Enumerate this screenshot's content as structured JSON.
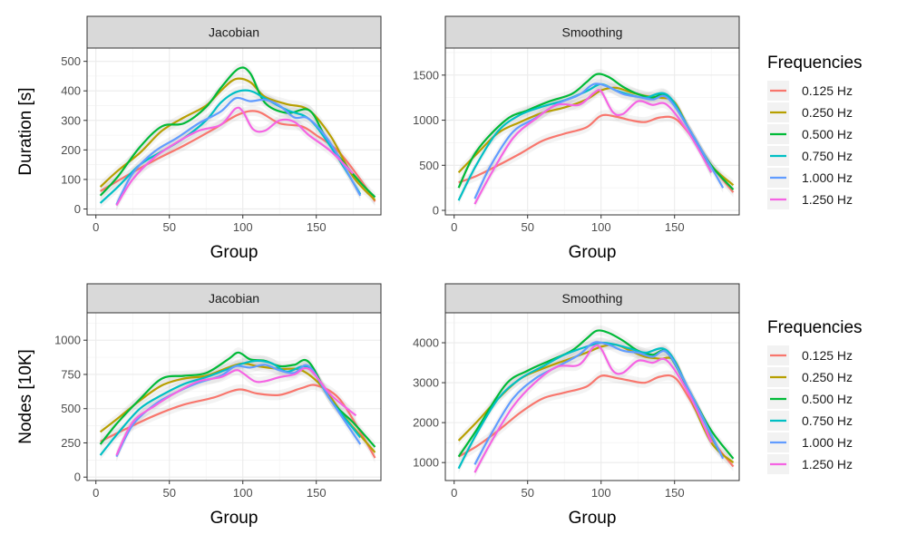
{
  "legend": {
    "title": "Frequencies",
    "items": [
      {
        "label": "0.125 Hz",
        "color": "#F8766D"
      },
      {
        "label": "0.250 Hz",
        "color": "#B79F00"
      },
      {
        "label": "0.500 Hz",
        "color": "#00BA38"
      },
      {
        "label": "0.750 Hz",
        "color": "#00BFC4"
      },
      {
        "label": "1.000 Hz",
        "color": "#619CFF"
      },
      {
        "label": "1.250 Hz",
        "color": "#F564E3"
      }
    ]
  },
  "chart_data": [
    {
      "type": "line",
      "panel_title": "Jacobian",
      "xlabel": "Group",
      "ylabel": "Duration [s]",
      "xlim": [
        -6,
        194
      ],
      "ylim": [
        -20,
        545
      ],
      "xticks": [
        0,
        50,
        100,
        150
      ],
      "yticks": [
        0,
        100,
        200,
        300,
        400,
        500
      ],
      "series": [
        {
          "name": "0.125 Hz",
          "x": [
            3,
            20,
            40,
            60,
            80,
            97,
            110,
            125,
            140,
            150,
            165,
            180,
            190
          ],
          "y": [
            60,
            110,
            165,
            215,
            270,
            320,
            330,
            290,
            280,
            250,
            195,
            100,
            25
          ]
        },
        {
          "name": "0.250 Hz",
          "x": [
            3,
            15,
            30,
            45,
            60,
            75,
            85,
            95,
            105,
            115,
            130,
            145,
            160,
            175,
            190
          ],
          "y": [
            75,
            130,
            190,
            265,
            310,
            350,
            400,
            440,
            430,
            380,
            355,
            335,
            245,
            110,
            30
          ]
        },
        {
          "name": "0.500 Hz",
          "x": [
            3,
            15,
            30,
            45,
            60,
            75,
            85,
            97,
            105,
            115,
            130,
            145,
            155,
            165,
            180,
            190
          ],
          "y": [
            45,
            110,
            210,
            280,
            290,
            345,
            410,
            475,
            460,
            360,
            325,
            335,
            255,
            180,
            90,
            40
          ]
        },
        {
          "name": "0.750 Hz",
          "x": [
            3,
            15,
            30,
            45,
            60,
            75,
            85,
            95,
            105,
            115,
            130,
            145,
            160,
            180
          ],
          "y": [
            20,
            75,
            150,
            195,
            240,
            300,
            360,
            395,
            400,
            375,
            335,
            305,
            210,
            50
          ]
        },
        {
          "name": "1.000 Hz",
          "x": [
            14,
            25,
            40,
            55,
            70,
            85,
            95,
            105,
            115,
            125,
            135,
            145,
            160,
            180
          ],
          "y": [
            15,
            120,
            195,
            240,
            290,
            330,
            375,
            365,
            370,
            350,
            310,
            305,
            220,
            45
          ]
        },
        {
          "name": "1.250 Hz",
          "x": [
            14,
            25,
            40,
            55,
            70,
            85,
            95,
            100,
            107,
            115,
            125,
            135,
            145,
            160,
            175
          ],
          "y": [
            12,
            100,
            175,
            225,
            265,
            285,
            340,
            330,
            270,
            265,
            300,
            295,
            250,
            195,
            120
          ]
        }
      ]
    },
    {
      "type": "line",
      "panel_title": "Smoothing",
      "xlabel": "Group",
      "ylabel": "",
      "xlim": [
        -6,
        194
      ],
      "ylim": [
        -50,
        1800
      ],
      "xticks": [
        0,
        50,
        100,
        150
      ],
      "yticks": [
        0,
        500,
        1000,
        1500
      ],
      "series": [
        {
          "name": "0.125 Hz",
          "x": [
            3,
            15,
            30,
            45,
            60,
            75,
            90,
            100,
            110,
            120,
            130,
            140,
            150,
            160,
            175,
            190
          ],
          "y": [
            310,
            380,
            500,
            630,
            770,
            850,
            920,
            1050,
            1040,
            1000,
            980,
            1030,
            1020,
            850,
            500,
            200
          ]
        },
        {
          "name": "0.250 Hz",
          "x": [
            3,
            15,
            30,
            45,
            60,
            75,
            90,
            100,
            110,
            120,
            130,
            140,
            150,
            160,
            175,
            190
          ],
          "y": [
            420,
            620,
            860,
            980,
            1080,
            1140,
            1230,
            1330,
            1360,
            1310,
            1270,
            1250,
            1200,
            900,
            500,
            280
          ]
        },
        {
          "name": "0.500 Hz",
          "x": [
            3,
            15,
            35,
            50,
            65,
            80,
            90,
            97,
            105,
            115,
            125,
            135,
            145,
            160,
            175,
            190
          ],
          "y": [
            250,
            650,
            1000,
            1110,
            1210,
            1290,
            1420,
            1510,
            1480,
            1370,
            1290,
            1250,
            1270,
            900,
            500,
            230
          ]
        },
        {
          "name": "0.750 Hz",
          "x": [
            3,
            15,
            30,
            45,
            60,
            75,
            90,
            100,
            110,
            120,
            130,
            145,
            160,
            175
          ],
          "y": [
            110,
            500,
            880,
            1060,
            1150,
            1220,
            1320,
            1400,
            1330,
            1280,
            1250,
            1280,
            900,
            420
          ]
        },
        {
          "name": "1.000 Hz",
          "x": [
            14,
            25,
            40,
            55,
            70,
            85,
            95,
            105,
            115,
            125,
            135,
            145,
            160,
            183
          ],
          "y": [
            130,
            500,
            870,
            1020,
            1180,
            1280,
            1400,
            1370,
            1290,
            1260,
            1230,
            1250,
            900,
            250
          ]
        },
        {
          "name": "1.250 Hz",
          "x": [
            14,
            25,
            40,
            55,
            70,
            85,
            95,
            100,
            108,
            115,
            125,
            135,
            145,
            160,
            175
          ],
          "y": [
            70,
            400,
            800,
            1010,
            1170,
            1170,
            1300,
            1320,
            1090,
            1070,
            1210,
            1170,
            1170,
            850,
            420
          ]
        }
      ]
    },
    {
      "type": "line",
      "panel_title": "Jacobian",
      "xlabel": "Group",
      "ylabel": "Nodes [10K]",
      "xlim": [
        -6,
        194
      ],
      "ylim": [
        -25,
        1200
      ],
      "xticks": [
        0,
        50,
        100,
        150
      ],
      "yticks": [
        0,
        250,
        500,
        750,
        1000
      ],
      "series": [
        {
          "name": "0.125 Hz",
          "x": [
            3,
            20,
            40,
            60,
            80,
            97,
            110,
            125,
            140,
            150,
            165,
            180,
            190
          ],
          "y": [
            260,
            350,
            450,
            530,
            580,
            640,
            610,
            600,
            650,
            670,
            580,
            330,
            140
          ]
        },
        {
          "name": "0.250 Hz",
          "x": [
            3,
            15,
            30,
            45,
            60,
            75,
            90,
            100,
            110,
            125,
            140,
            155,
            170,
            190
          ],
          "y": [
            330,
            430,
            560,
            670,
            720,
            740,
            800,
            830,
            810,
            790,
            780,
            650,
            430,
            180
          ]
        },
        {
          "name": "0.500 Hz",
          "x": [
            3,
            15,
            30,
            45,
            60,
            75,
            90,
            97,
            105,
            115,
            125,
            135,
            145,
            160,
            175,
            190
          ],
          "y": [
            240,
            400,
            570,
            720,
            740,
            760,
            860,
            910,
            860,
            850,
            810,
            820,
            840,
            560,
            400,
            220
          ]
        },
        {
          "name": "0.750 Hz",
          "x": [
            3,
            15,
            30,
            45,
            60,
            75,
            90,
            100,
            110,
            120,
            130,
            145,
            160,
            180
          ],
          "y": [
            160,
            320,
            500,
            600,
            680,
            730,
            790,
            830,
            850,
            830,
            770,
            800,
            560,
            290
          ]
        },
        {
          "name": "1.000 Hz",
          "x": [
            14,
            25,
            40,
            55,
            70,
            85,
            95,
            105,
            115,
            125,
            135,
            145,
            160,
            180
          ],
          "y": [
            150,
            380,
            530,
            620,
            690,
            740,
            810,
            800,
            820,
            780,
            760,
            810,
            560,
            240
          ]
        },
        {
          "name": "1.250 Hz",
          "x": [
            14,
            25,
            40,
            55,
            70,
            85,
            95,
            100,
            108,
            115,
            125,
            135,
            145,
            160,
            177
          ],
          "y": [
            160,
            400,
            520,
            620,
            700,
            730,
            780,
            760,
            700,
            700,
            730,
            750,
            790,
            600,
            450
          ]
        }
      ]
    },
    {
      "type": "line",
      "panel_title": "Smoothing",
      "xlabel": "Group",
      "ylabel": "",
      "xlim": [
        -6,
        194
      ],
      "ylim": [
        550,
        4750
      ],
      "xticks": [
        0,
        50,
        100,
        150
      ],
      "yticks": [
        1000,
        2000,
        3000,
        4000
      ],
      "series": [
        {
          "name": "0.125 Hz",
          "x": [
            3,
            15,
            30,
            45,
            60,
            75,
            90,
            100,
            110,
            120,
            130,
            140,
            150,
            160,
            175,
            190
          ],
          "y": [
            1150,
            1400,
            1800,
            2250,
            2600,
            2750,
            2900,
            3170,
            3120,
            3050,
            3000,
            3150,
            3130,
            2600,
            1600,
            900
          ]
        },
        {
          "name": "0.250 Hz",
          "x": [
            3,
            15,
            30,
            45,
            60,
            75,
            90,
            100,
            110,
            120,
            130,
            140,
            150,
            160,
            175,
            190
          ],
          "y": [
            1550,
            2000,
            2600,
            3100,
            3350,
            3550,
            3750,
            3900,
            3950,
            3800,
            3650,
            3600,
            3550,
            2700,
            1500,
            1000
          ]
        },
        {
          "name": "0.500 Hz",
          "x": [
            3,
            15,
            35,
            50,
            65,
            80,
            90,
            97,
            105,
            115,
            125,
            135,
            145,
            160,
            175,
            190
          ],
          "y": [
            1150,
            1800,
            2950,
            3300,
            3550,
            3800,
            4100,
            4300,
            4250,
            4050,
            3800,
            3700,
            3750,
            2800,
            1800,
            1100
          ]
        },
        {
          "name": "0.750 Hz",
          "x": [
            3,
            15,
            30,
            45,
            60,
            75,
            90,
            100,
            110,
            120,
            130,
            145,
            160,
            180
          ],
          "y": [
            850,
            1700,
            2600,
            3100,
            3400,
            3700,
            3900,
            4000,
            3950,
            3850,
            3750,
            3800,
            2800,
            1300
          ]
        },
        {
          "name": "1.000 Hz",
          "x": [
            14,
            25,
            40,
            55,
            70,
            85,
            95,
            105,
            115,
            125,
            135,
            145,
            160,
            183
          ],
          "y": [
            950,
            1700,
            2600,
            3100,
            3400,
            3700,
            4000,
            3950,
            3800,
            3750,
            3650,
            3750,
            2800,
            1100
          ]
        },
        {
          "name": "1.250 Hz",
          "x": [
            14,
            25,
            40,
            55,
            70,
            85,
            95,
            100,
            108,
            115,
            125,
            135,
            145,
            160,
            175
          ],
          "y": [
            750,
            1500,
            2400,
            3000,
            3400,
            3450,
            3900,
            3850,
            3300,
            3250,
            3550,
            3500,
            3550,
            2700,
            1500
          ]
        }
      ]
    }
  ]
}
